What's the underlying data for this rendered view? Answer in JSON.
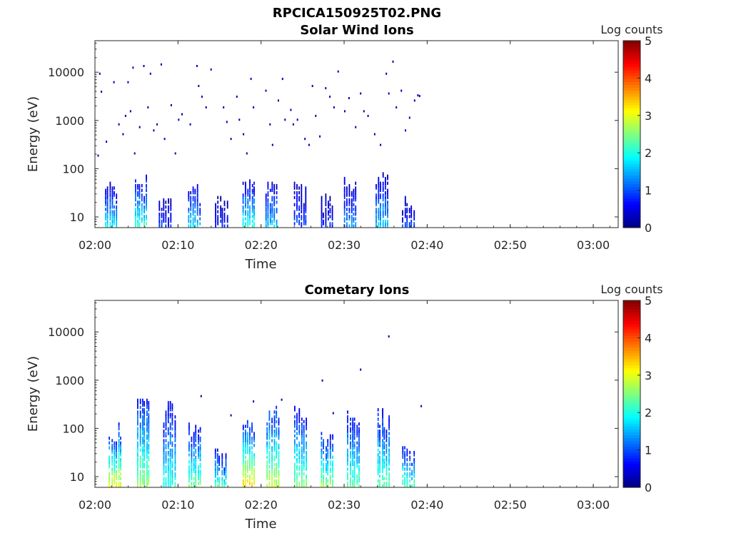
{
  "figure_title": "RPCICA150925T02.PNG",
  "chart_data": [
    {
      "type": "heatmap",
      "title": "Solar Wind Ions",
      "xlabel": "Time",
      "ylabel": "Energy (eV)",
      "x_range": [
        "02:00",
        "03:03"
      ],
      "x_ticks": [
        "02:00",
        "02:10",
        "02:20",
        "02:30",
        "02:40",
        "02:50",
        "03:00"
      ],
      "y_scale": "log",
      "y_range": [
        6,
        45000
      ],
      "y_ticks": [
        "10",
        "100",
        "1000",
        "10000"
      ],
      "colorbar": {
        "label": "Log counts",
        "range": [
          0,
          5
        ],
        "ticks": [
          "0",
          "1",
          "2",
          "3",
          "4",
          "5"
        ],
        "colormap": "jet"
      },
      "data_time_extent": [
        "02:00",
        "02:39"
      ],
      "bursts": [
        {
          "t": 2.0,
          "e_max": 50,
          "peak": 1.8
        },
        {
          "t": 5.6,
          "e_max": 60,
          "peak": 2.1
        },
        {
          "t": 8.5,
          "e_max": 18,
          "peak": 0.9
        },
        {
          "t": 12.0,
          "e_max": 35,
          "peak": 1.7
        },
        {
          "t": 15.3,
          "e_max": 25,
          "peak": 0.8
        },
        {
          "t": 18.6,
          "e_max": 40,
          "peak": 2.0
        },
        {
          "t": 21.3,
          "e_max": 45,
          "peak": 1.6
        },
        {
          "t": 24.8,
          "e_max": 35,
          "peak": 1.0
        },
        {
          "t": 28.0,
          "e_max": 22,
          "peak": 0.8
        },
        {
          "t": 30.8,
          "e_max": 45,
          "peak": 1.3
        },
        {
          "t": 34.6,
          "e_max": 80,
          "peak": 1.6
        },
        {
          "t": 37.8,
          "e_max": 18,
          "peak": 0.9
        }
      ],
      "sparse_points": [
        [
          0.3,
          180
        ],
        [
          0.5,
          9000
        ],
        [
          0.7,
          3800
        ],
        [
          1.3,
          350
        ],
        [
          2.2,
          6000
        ],
        [
          2.8,
          800
        ],
        [
          3.3,
          500
        ],
        [
          3.6,
          1200
        ],
        [
          3.9,
          6000
        ],
        [
          4.2,
          1500
        ],
        [
          4.5,
          12000
        ],
        [
          4.7,
          200
        ],
        [
          5.3,
          700
        ],
        [
          5.8,
          13000
        ],
        [
          6.3,
          1800
        ],
        [
          6.6,
          9000
        ],
        [
          7.0,
          600
        ],
        [
          7.4,
          800
        ],
        [
          7.9,
          14000
        ],
        [
          8.3,
          400
        ],
        [
          9.1,
          2000
        ],
        [
          9.6,
          200
        ],
        [
          10.0,
          1000
        ],
        [
          10.4,
          1300
        ],
        [
          11.4,
          800
        ],
        [
          12.2,
          13000
        ],
        [
          12.4,
          5000
        ],
        [
          12.8,
          3000
        ],
        [
          13.3,
          1800
        ],
        [
          13.9,
          11000
        ],
        [
          15.4,
          1800
        ],
        [
          15.8,
          900
        ],
        [
          16.3,
          400
        ],
        [
          17.0,
          3000
        ],
        [
          17.3,
          1000
        ],
        [
          17.8,
          500
        ],
        [
          18.2,
          200
        ],
        [
          18.7,
          7000
        ],
        [
          19.0,
          1800
        ],
        [
          20.5,
          4000
        ],
        [
          21.0,
          800
        ],
        [
          21.3,
          300
        ],
        [
          22.0,
          2500
        ],
        [
          22.5,
          7000
        ],
        [
          22.8,
          1000
        ],
        [
          23.5,
          1600
        ],
        [
          23.8,
          800
        ],
        [
          24.3,
          1000
        ],
        [
          25.2,
          400
        ],
        [
          25.7,
          300
        ],
        [
          26.1,
          5000
        ],
        [
          26.5,
          1200
        ],
        [
          27.0,
          450
        ],
        [
          27.7,
          4500
        ],
        [
          28.2,
          3000
        ],
        [
          28.7,
          1800
        ],
        [
          29.2,
          10000
        ],
        [
          30.0,
          1500
        ],
        [
          30.5,
          2800
        ],
        [
          31.3,
          700
        ],
        [
          31.9,
          3500
        ],
        [
          32.3,
          1500
        ],
        [
          32.8,
          1200
        ],
        [
          33.6,
          500
        ],
        [
          34.3,
          300
        ],
        [
          35.0,
          9000
        ],
        [
          35.3,
          3500
        ],
        [
          35.8,
          16000
        ],
        [
          36.2,
          1800
        ],
        [
          36.8,
          4000
        ],
        [
          37.3,
          600
        ],
        [
          37.8,
          1100
        ],
        [
          38.4,
          2500
        ],
        [
          38.8,
          3200
        ],
        [
          39.0,
          3100
        ]
      ]
    },
    {
      "type": "heatmap",
      "title": "Cometary Ions",
      "xlabel": "Time",
      "ylabel": "Energy (eV)",
      "x_range": [
        "02:00",
        "03:03"
      ],
      "x_ticks": [
        "02:00",
        "02:10",
        "02:20",
        "02:30",
        "02:40",
        "02:50",
        "03:00"
      ],
      "y_scale": "log",
      "y_range": [
        6,
        45000
      ],
      "y_ticks": [
        "10",
        "100",
        "1000",
        "10000"
      ],
      "colorbar": {
        "label": "Log counts",
        "range": [
          0,
          5
        ],
        "ticks": [
          "0",
          "1",
          "2",
          "3",
          "4",
          "5"
        ],
        "colormap": "jet"
      },
      "data_time_extent": [
        "02:00",
        "02:39"
      ],
      "bursts": [
        {
          "t": 2.5,
          "e_max": 90,
          "peak": 3.1
        },
        {
          "t": 5.9,
          "e_max": 300,
          "peak": 2.6
        },
        {
          "t": 9.0,
          "e_max": 250,
          "peak": 2.1
        },
        {
          "t": 12.1,
          "e_max": 120,
          "peak": 2.4
        },
        {
          "t": 15.2,
          "e_max": 25,
          "peak": 2.2
        },
        {
          "t": 18.6,
          "e_max": 100,
          "peak": 3.3
        },
        {
          "t": 21.5,
          "e_max": 200,
          "peak": 2.9
        },
        {
          "t": 24.8,
          "e_max": 200,
          "peak": 2.5
        },
        {
          "t": 28.0,
          "e_max": 60,
          "peak": 2.6
        },
        {
          "t": 31.2,
          "e_max": 150,
          "peak": 2.3
        },
        {
          "t": 34.8,
          "e_max": 180,
          "peak": 2.4
        },
        {
          "t": 37.8,
          "e_max": 30,
          "peak": 2.3
        }
      ],
      "sparse_points": [
        [
          12.7,
          450
        ],
        [
          16.3,
          180
        ],
        [
          19.0,
          350
        ],
        [
          22.4,
          380
        ],
        [
          27.3,
          950
        ],
        [
          28.6,
          200
        ],
        [
          31.9,
          1600
        ],
        [
          35.3,
          7800
        ],
        [
          39.2,
          280
        ]
      ]
    }
  ]
}
